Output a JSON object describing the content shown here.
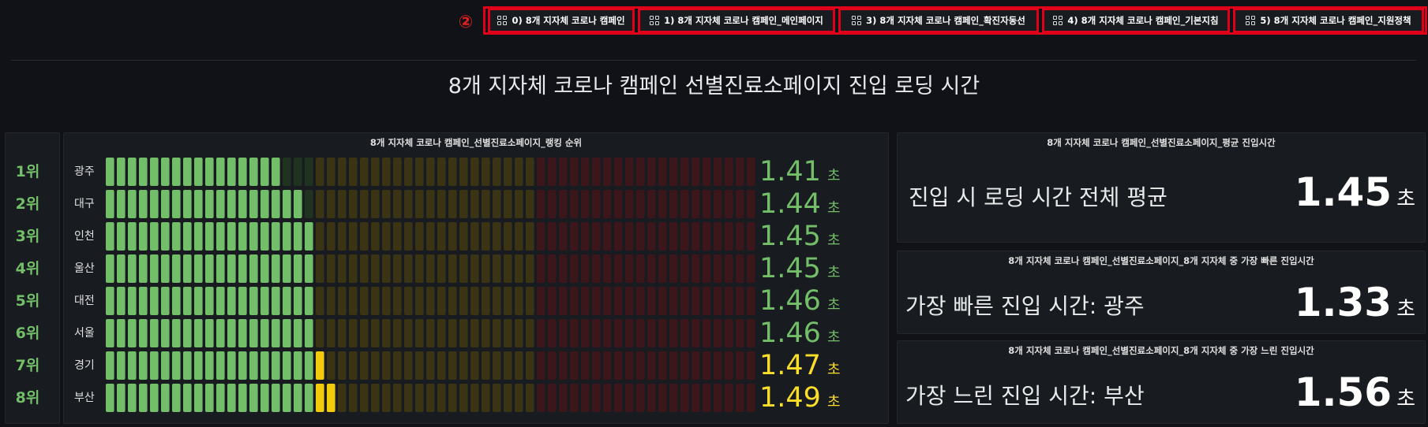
{
  "marker": "②",
  "dashboard_links": [
    {
      "label": "0) 8개 지자체 코로나 캠페인"
    },
    {
      "label": "1) 8개 지자체 코로나 캠페인_메인페이지"
    },
    {
      "label": "3) 8개 지자체 코로나 캠페인_확진자동선"
    },
    {
      "label": "4) 8개 지자체 코로나 캠페인_기본지침"
    },
    {
      "label": "5) 8개 지자체 코로나 캠페인_지원정책"
    }
  ],
  "row_title": "8개 지자체 코로나 캠페인 선별진료소페이지 진입 로딩 시간",
  "ranking_panel": {
    "title": "8개 지자체 코로나 캠페인_선별진료소페이지_랭킹 순위",
    "unit": "초",
    "scale_min": 0,
    "scale_max": 2.0,
    "thresholds": {
      "green_until": 1.46,
      "yellow_until": 1.6
    },
    "colors": {
      "green": "#73bf69",
      "yellow": "#fade2a",
      "orange": "#f2cc0c",
      "red": "#f2495c"
    },
    "rows": [
      {
        "rank": "1위",
        "city": "광주",
        "value": "1.41",
        "color": "#73bf69"
      },
      {
        "rank": "2위",
        "city": "대구",
        "value": "1.44",
        "color": "#73bf69"
      },
      {
        "rank": "3위",
        "city": "인천",
        "value": "1.45",
        "color": "#73bf69"
      },
      {
        "rank": "4위",
        "city": "울산",
        "value": "1.45",
        "color": "#73bf69"
      },
      {
        "rank": "5위",
        "city": "대전",
        "value": "1.46",
        "color": "#73bf69"
      },
      {
        "rank": "6위",
        "city": "서울",
        "value": "1.46",
        "color": "#73bf69"
      },
      {
        "rank": "7위",
        "city": "경기",
        "value": "1.47",
        "color": "#fade2a"
      },
      {
        "rank": "8위",
        "city": "부산",
        "value": "1.49",
        "color": "#fade2a"
      }
    ]
  },
  "stat_panels": [
    {
      "title": "8개 지자체 코로나 캠페인_선별진료소페이지_평균 진입시간",
      "label": "진입 시 로딩 시간 전체 평균",
      "value": "1.45",
      "unit": "초"
    },
    {
      "title": "8개 지자체 코로나 캠페인_선별진료소페이지_8개 지자체 중 가장 빠른 진입시간",
      "label": "가장 빠른 진입 시간: 광주",
      "value": "1.33",
      "unit": "초"
    },
    {
      "title": "8개 지자체 코로나 캠페인_선별진료소페이지_8개 지자체 중 가장 느린 진입시간",
      "label": "가장 느린 진입 시간: 부산",
      "value": "1.56",
      "unit": "초"
    }
  ]
}
